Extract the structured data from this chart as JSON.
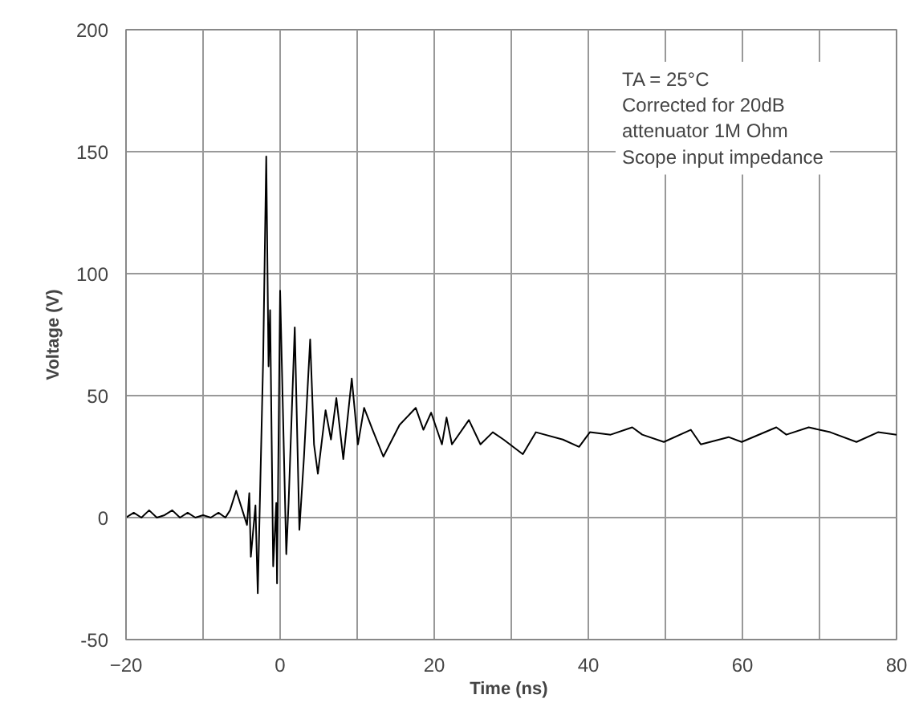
{
  "chart_data": {
    "type": "line",
    "xlabel": "Time  (ns)",
    "ylabel": "Voltage (V)",
    "annotations": [
      "TA = 25°C\nCorrected for 20dB\nattenuator 1M Ohm\nScope input impedance"
    ],
    "xlim": [
      -20,
      80
    ],
    "xticks": [
      {
        "value": -20,
        "label": "−20"
      },
      0,
      20,
      40,
      60,
      80
    ],
    "ylim": [
      -50,
      200
    ],
    "yticks": [
      -50,
      0,
      50,
      100,
      150,
      200
    ],
    "grid": true,
    "marker": "none",
    "line_style": "solid",
    "series": [
      {
        "color": "#000000",
        "x": [
          -20,
          -19,
          -18,
          -17,
          -16,
          -15,
          -14,
          -13,
          -12,
          -11,
          -10,
          -9,
          -8,
          -7.1,
          -6.5,
          -5.7,
          -4.3,
          -4.0,
          -3.8,
          -3.2,
          -2.9,
          -2.2,
          -1.8,
          -1.5,
          -1.3,
          -0.9,
          -0.5,
          -0.4,
          0.0,
          0.8,
          1.1,
          1.9,
          2.5,
          3.1,
          3.9,
          4.4,
          4.9,
          5.9,
          6.6,
          7.3,
          8.2,
          9.3,
          10.1,
          10.9,
          12.0,
          13.4,
          15.5,
          17.6,
          18.6,
          19.6,
          21.0,
          21.6,
          22.3,
          24.5,
          26.0,
          27.6,
          29.0,
          31.5,
          33.2,
          36.7,
          38.8,
          40.2,
          42.9,
          45.7,
          47.0,
          49.8,
          53.3,
          54.6,
          58.2,
          59.9,
          64.4,
          65.7,
          68.6,
          71.4,
          74.8,
          77.6,
          80
        ],
        "values": [
          0,
          2,
          0,
          3,
          0,
          1,
          3,
          0,
          2,
          0,
          1,
          0,
          2,
          0,
          3,
          11,
          -3,
          10,
          -16,
          5,
          -31,
          65,
          148,
          62,
          85,
          -20,
          6,
          -27,
          93,
          -15,
          6,
          78,
          -5,
          25,
          73,
          30,
          18,
          44,
          32,
          49,
          24,
          57,
          30,
          45,
          36,
          25,
          38,
          45,
          36,
          43,
          30,
          41,
          30,
          40,
          30,
          35,
          32,
          26,
          35,
          32,
          29,
          35,
          34,
          37,
          34,
          31,
          36,
          30,
          33,
          31,
          37,
          34,
          37,
          35,
          31,
          35,
          34
        ]
      }
    ]
  }
}
